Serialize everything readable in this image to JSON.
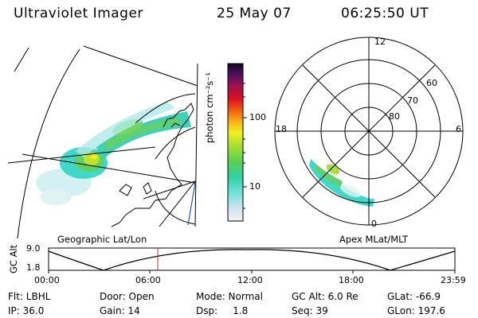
{
  "header": {
    "title": "Ultraviolet Imager",
    "date": "25 May 07",
    "time": "06:25:50 UT"
  },
  "colorbar": {
    "label": "photon cm⁻²s⁻¹",
    "ticks": [
      "100",
      "10"
    ]
  },
  "polar_plot": {
    "mlt_labels": [
      "12",
      "18",
      "6",
      "0"
    ],
    "lat_labels": [
      "60",
      "70",
      "80"
    ]
  },
  "projections": {
    "geo_label": "Geographic Lat/Lon",
    "apex_label": "Apex MLat/MLT"
  },
  "altitude_plot": {
    "ylabel": "GC Alt",
    "y_ticks": [
      "9.0",
      "1.8"
    ],
    "x_ticks": [
      "00:00",
      "06:00",
      "12:00",
      "18:00",
      "23:59"
    ]
  },
  "footer": {
    "filter": "Flt: LBHL",
    "door": "Door: Open",
    "mode": "Mode: Normal",
    "gc_alt": "GC Alt: 6.0 Re",
    "glat": "GLat: -66.9",
    "ip": "IP: 36.0",
    "gain": "Gain: 14",
    "dsp": "Dsp:     1.8",
    "seq": "Seq: 39",
    "glon": "GLon: 197.6"
  }
}
